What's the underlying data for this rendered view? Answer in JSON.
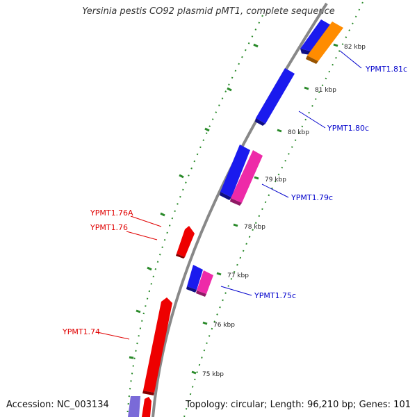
{
  "title": "Yersinia pestis CO92 plasmid pMT1, complete sequence",
  "footer": {
    "accession": "Accession: NC_003134",
    "summary": "Topology: circular; Length: 96,210 bp; Genes: 101"
  },
  "colors": {
    "backbone": "#888888",
    "tick": "#2a8a2a",
    "forward_label": "#e00000",
    "reverse_label": "#0000cc",
    "blue_gene": "#1a1aee",
    "magenta_gene": "#ee2aa8",
    "red_gene": "#ee0000",
    "orange_gene": "#ff8c00",
    "purple_gene": "#7a6ad8"
  },
  "ticks": [
    {
      "kbp": 75,
      "label": "75 kbp"
    },
    {
      "kbp": 76,
      "label": "76 kbp"
    },
    {
      "kbp": 77,
      "label": "77 kbp"
    },
    {
      "kbp": 78,
      "label": "78 kbp"
    },
    {
      "kbp": 79,
      "label": "79 kbp"
    },
    {
      "kbp": 80,
      "label": "80 kbp"
    },
    {
      "kbp": 81,
      "label": "81 kbp"
    },
    {
      "kbp": 82,
      "label": "82 kbp"
    }
  ],
  "gene_labels": [
    {
      "text": "YPMT1.81c",
      "strand": "reverse"
    },
    {
      "text": "YPMT1.80c",
      "strand": "reverse"
    },
    {
      "text": "YPMT1.79c",
      "strand": "reverse"
    },
    {
      "text": "YPMT1.75c",
      "strand": "reverse"
    },
    {
      "text": "YPMT1.76A",
      "strand": "forward"
    },
    {
      "text": "YPMT1.76",
      "strand": "forward"
    },
    {
      "text": "YPMT1.74",
      "strand": "forward"
    }
  ]
}
